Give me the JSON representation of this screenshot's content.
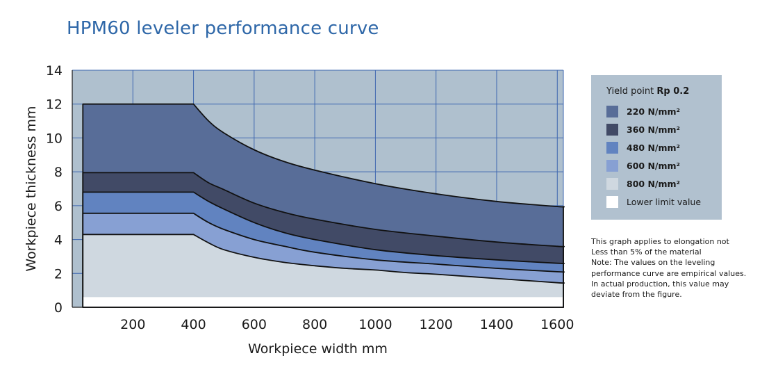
{
  "title": "HPM60 leveler performance curve",
  "chart_data": {
    "type": "area",
    "title": "HPM60 leveler performance curve",
    "xlabel": "Workpiece width mm",
    "ylabel": "Workpiece thickness mm",
    "xlim": [
      0,
      1620
    ],
    "ylim": [
      0,
      14
    ],
    "xticks": [
      200,
      400,
      600,
      800,
      1000,
      1200,
      1400,
      1600
    ],
    "yticks": [
      0,
      2,
      4,
      6,
      8,
      10,
      12,
      14
    ],
    "grid": true,
    "legend_position": "right",
    "x_start": 35,
    "lower_limit": 0.6,
    "series": [
      {
        "name": "220 N/mm²",
        "color": "#586d98",
        "x": [
          35,
          400,
          450,
          500,
          600,
          700,
          800,
          1000,
          1200,
          1400,
          1600,
          1620
        ],
        "y": [
          12.0,
          12.0,
          11.0,
          10.3,
          9.3,
          8.6,
          8.1,
          7.3,
          6.7,
          6.25,
          5.95,
          5.95
        ]
      },
      {
        "name": "360 N/mm²",
        "color": "#414a66",
        "x": [
          35,
          400,
          450,
          500,
          600,
          700,
          800,
          1000,
          1200,
          1400,
          1600,
          1620
        ],
        "y": [
          7.95,
          7.95,
          7.35,
          6.95,
          6.15,
          5.6,
          5.2,
          4.6,
          4.2,
          3.85,
          3.6,
          3.6
        ]
      },
      {
        "name": "480 N/mm²",
        "color": "#6183c0",
        "x": [
          35,
          400,
          450,
          500,
          600,
          700,
          800,
          1000,
          1200,
          1400,
          1600,
          1620
        ],
        "y": [
          6.8,
          6.8,
          6.25,
          5.8,
          5.0,
          4.4,
          4.0,
          3.4,
          3.05,
          2.8,
          2.6,
          2.6
        ]
      },
      {
        "name": "600 N/mm²",
        "color": "#87a0d3",
        "x": [
          35,
          400,
          450,
          500,
          600,
          700,
          800,
          1000,
          1200,
          1400,
          1600,
          1620
        ],
        "y": [
          5.55,
          5.55,
          5.0,
          4.6,
          4.0,
          3.6,
          3.25,
          2.8,
          2.55,
          2.3,
          2.1,
          2.1
        ]
      },
      {
        "name": "800 N/mm²",
        "color": "#cfd8e0",
        "x": [
          35,
          400,
          450,
          500,
          600,
          700,
          800,
          900,
          1000,
          1100,
          1200,
          1400,
          1600,
          1620
        ],
        "y": [
          4.3,
          4.3,
          3.8,
          3.4,
          2.95,
          2.65,
          2.45,
          2.3,
          2.2,
          2.05,
          1.95,
          1.7,
          1.45,
          1.45
        ]
      }
    ]
  },
  "legend": {
    "title_prefix": "Yield point ",
    "title_bold": "Rp 0.2",
    "items": [
      {
        "label": "220 N/mm²",
        "color": "#586d98"
      },
      {
        "label": "360 N/mm²",
        "color": "#414a66"
      },
      {
        "label": "480 N/mm²",
        "color": "#6183c0"
      },
      {
        "label": "600 N/mm²",
        "color": "#87a0d3"
      },
      {
        "label": "800 N/mm²",
        "color": "#cfd8e0"
      },
      {
        "label": "Lower limit value",
        "color": "#ffffff"
      }
    ]
  },
  "note_lines": [
    "This graph applies to elongation not",
    "Less than 5% of the material",
    "Note: The values on the leveling",
    "performance curve are empirical values.",
    "In actual production, this value may",
    "deviate from the figure."
  ],
  "colors": {
    "plot_background": "#afc0ce",
    "grid": "#3f67b0",
    "axis": "#1a1a1a",
    "legend_background": "#b1c1cf",
    "title": "#2e67a8"
  }
}
